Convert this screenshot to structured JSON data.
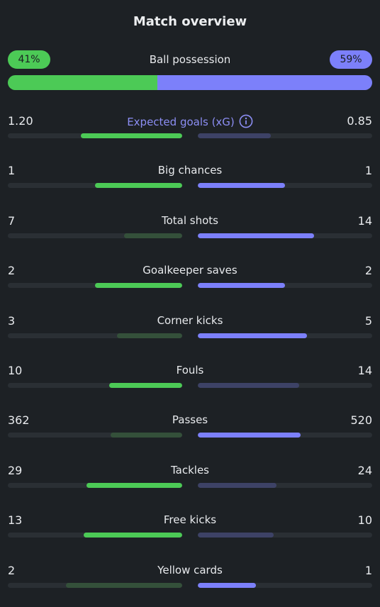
{
  "title": "Match overview",
  "colors": {
    "home_strong": "#4cca56",
    "home_weak": "#34503a",
    "away_strong": "#7c80fa",
    "away_weak": "#3d4266",
    "track": "#2a2f34"
  },
  "possession": {
    "label": "Ball possession",
    "home": "41%",
    "away": "59%",
    "home_fraction": 0.41,
    "away_fraction": 0.59
  },
  "stats": [
    {
      "label": "Expected goals (xG)",
      "home": "1.20",
      "away": "0.85",
      "home_fill": 0.58,
      "away_fill": 0.42,
      "winner": "home",
      "link": true,
      "icon": "info-icon"
    },
    {
      "label": "Big chances",
      "home": "1",
      "away": "1",
      "home_fill": 0.5,
      "away_fill": 0.5,
      "winner": "both"
    },
    {
      "label": "Total shots",
      "home": "7",
      "away": "14",
      "home_fill": 0.333,
      "away_fill": 0.667,
      "winner": "away"
    },
    {
      "label": "Goalkeeper saves",
      "home": "2",
      "away": "2",
      "home_fill": 0.5,
      "away_fill": 0.5,
      "winner": "both"
    },
    {
      "label": "Corner kicks",
      "home": "3",
      "away": "5",
      "home_fill": 0.375,
      "away_fill": 0.625,
      "winner": "away"
    },
    {
      "label": "Fouls",
      "home": "10",
      "away": "14",
      "home_fill": 0.417,
      "away_fill": 0.583,
      "winner": "home"
    },
    {
      "label": "Passes",
      "home": "362",
      "away": "520",
      "home_fill": 0.41,
      "away_fill": 0.59,
      "winner": "away"
    },
    {
      "label": "Tackles",
      "home": "29",
      "away": "24",
      "home_fill": 0.547,
      "away_fill": 0.453,
      "winner": "home"
    },
    {
      "label": "Free kicks",
      "home": "13",
      "away": "10",
      "home_fill": 0.565,
      "away_fill": 0.435,
      "winner": "home"
    },
    {
      "label": "Yellow cards",
      "home": "2",
      "away": "1",
      "home_fill": 0.667,
      "away_fill": 0.333,
      "winner": "away"
    }
  ]
}
